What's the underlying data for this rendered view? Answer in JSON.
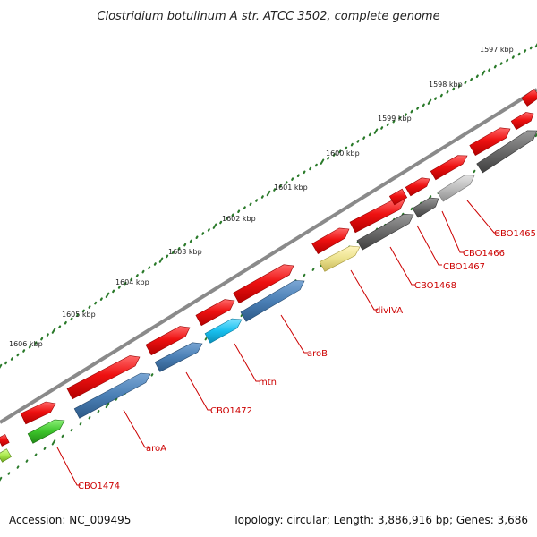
{
  "title": "Clostridium botulinum A str. ATCC 3502, complete genome",
  "footer": {
    "accession": "Accession: NC_009495",
    "summary": "Topology: circular; Length: 3,886,916 bp; Genes: 3,686"
  },
  "colors": {
    "forward_gene": "#ee1111",
    "backbone": "#8a8a8a",
    "tick": "#2a7a2a",
    "label": "#cc0000"
  },
  "tick_labels": [
    "1597 kbp",
    "1598 kbp",
    "1599 kbp",
    "1600 kbp",
    "1601 kbp",
    "1602 kbp",
    "1603 kbp",
    "1604 kbp",
    "1605 kbp",
    "1606 kbp"
  ],
  "gene_labels": [
    "CBO1465",
    "CBO1466",
    "CBO1467",
    "CBO1468",
    "divIVA",
    "aroB",
    "mtn",
    "CBO1472",
    "aroA",
    "CBO1474"
  ]
}
